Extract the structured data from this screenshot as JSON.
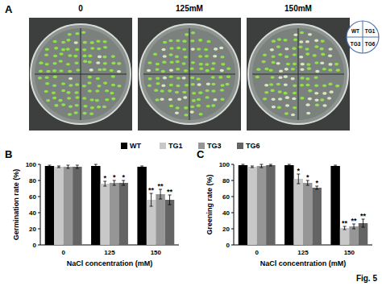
{
  "panel_labels": [
    "A",
    "B",
    "C"
  ],
  "panel_a": {
    "conditions": [
      "0",
      "125mM",
      "150mM"
    ],
    "quadrants": [
      "WT",
      "TG1",
      "TG3",
      "TG6"
    ]
  },
  "figure_label": "Fig. 5",
  "chart_data": [
    {
      "type": "bar",
      "x_label": "NaCl concentration (mM)",
      "y_label": "Germination rate (%)",
      "categories": [
        "0",
        "125",
        "150"
      ],
      "ylim": [
        0,
        100
      ],
      "yticks": [
        0,
        20,
        40,
        60,
        80,
        100
      ],
      "legend": "top",
      "series": [
        {
          "name": "WT",
          "color": "#000000",
          "values": [
            98,
            98,
            97
          ],
          "errors": [
            1,
            2,
            1
          ],
          "significance": [
            null,
            null,
            null
          ]
        },
        {
          "name": "TG1",
          "color": "#c8c8c8",
          "values": [
            97,
            76,
            56
          ],
          "errors": [
            1,
            3,
            8
          ],
          "significance": [
            null,
            "*",
            "**"
          ]
        },
        {
          "name": "TG3",
          "color": "#969696",
          "values": [
            97,
            77,
            63
          ],
          "errors": [
            2,
            3,
            6
          ],
          "significance": [
            null,
            "*",
            "**"
          ]
        },
        {
          "name": "TG6",
          "color": "#646464",
          "values": [
            97,
            77,
            56
          ],
          "errors": [
            2,
            3,
            6
          ],
          "significance": [
            null,
            "*",
            "**"
          ]
        }
      ]
    },
    {
      "type": "bar",
      "x_label": "NaCl concentration (mM)",
      "y_label": "Greening rate (%)",
      "categories": [
        "0",
        "125",
        "150"
      ],
      "ylim": [
        0,
        100
      ],
      "yticks": [
        0,
        20,
        40,
        60,
        80,
        100
      ],
      "series": [
        {
          "color": "#000000",
          "values": [
            99,
            99,
            98
          ],
          "errors": [
            1,
            1,
            1
          ],
          "significance": [
            null,
            null,
            null
          ]
        },
        {
          "color": "#c8c8c8",
          "values": [
            97,
            82,
            21
          ],
          "errors": [
            1,
            6,
            2
          ],
          "significance": [
            null,
            "*",
            "**"
          ]
        },
        {
          "color": "#969696",
          "values": [
            98,
            77,
            23
          ],
          "errors": [
            2,
            3,
            3
          ],
          "significance": [
            null,
            "*",
            "**"
          ]
        },
        {
          "color": "#646464",
          "values": [
            99,
            71,
            27
          ],
          "errors": [
            1,
            2,
            5
          ],
          "significance": [
            null,
            "*",
            "**"
          ]
        }
      ]
    }
  ]
}
